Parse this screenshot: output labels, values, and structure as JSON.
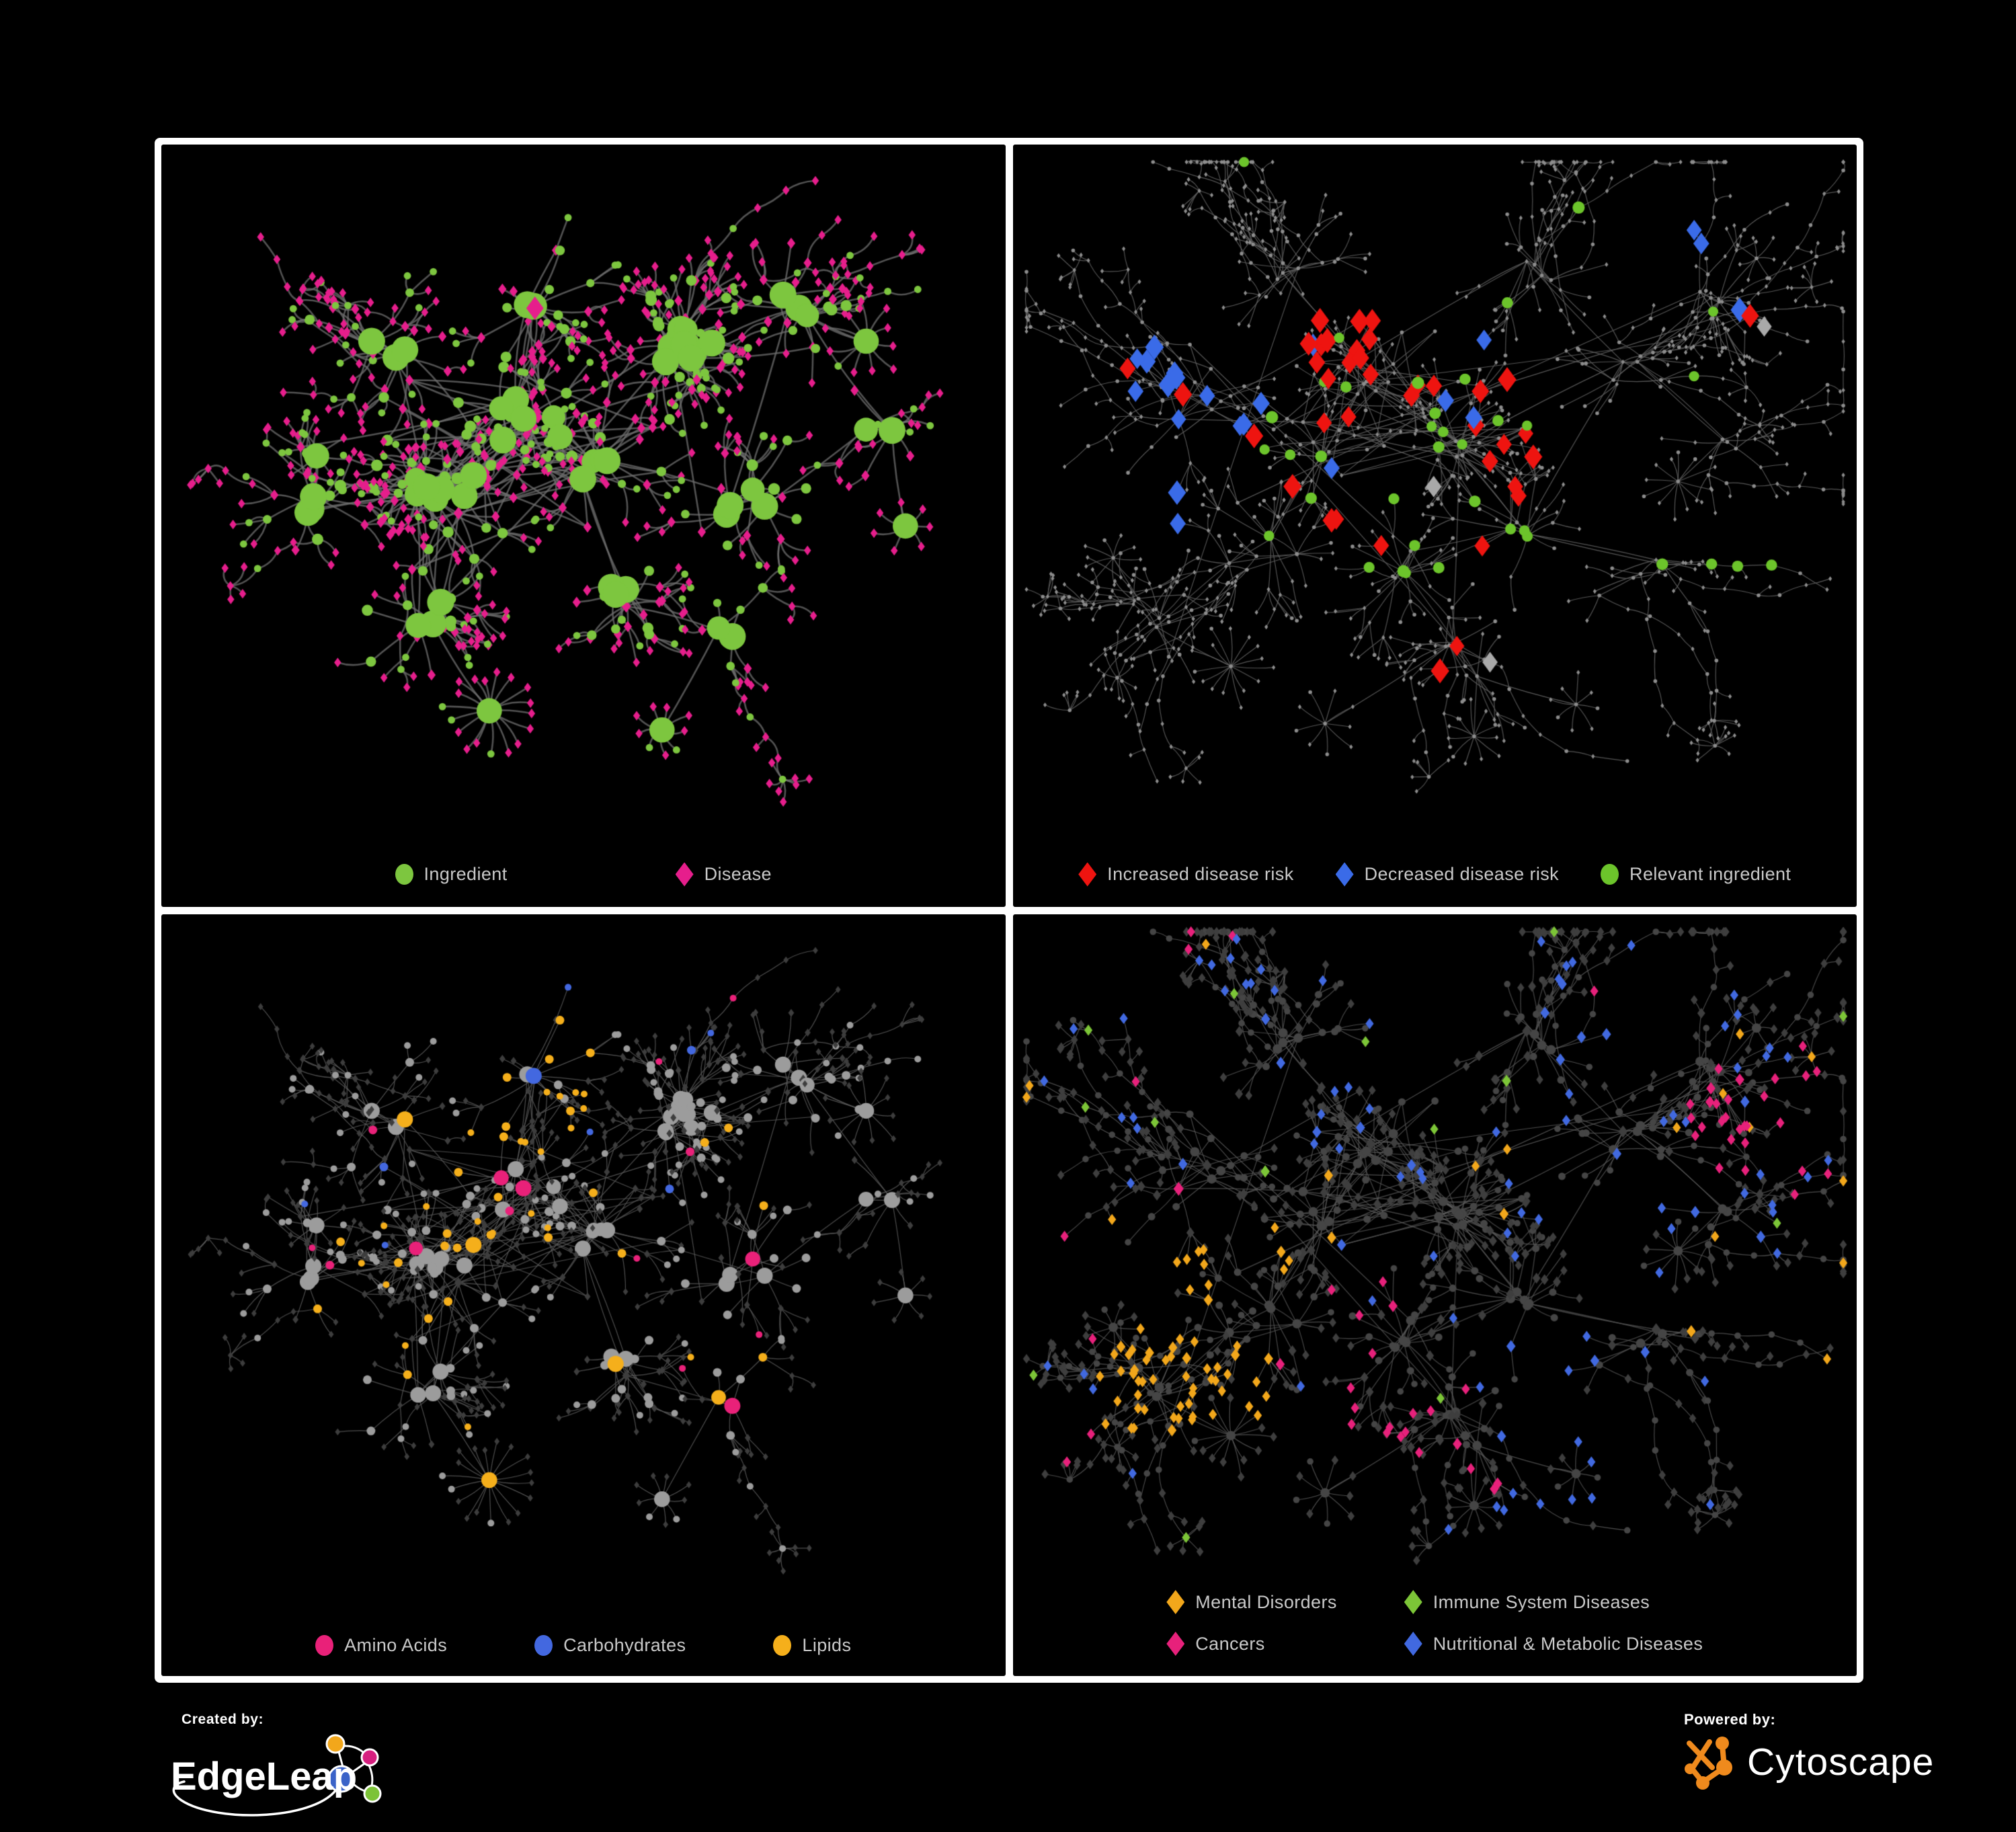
{
  "colors": {
    "background": "#000000",
    "frame": "#ffffff",
    "legend_text": "#c9c9c9",
    "edgeleap_orange": "#f2a71b",
    "edgeleap_pink": "#d61f7f",
    "edgeleap_blue": "#3b63c8",
    "edgeleap_green": "#7cc337",
    "cytoscape_orange": "#ef8a1d"
  },
  "panels": [
    {
      "id": "ingredient-disease",
      "legend": [
        {
          "label": "Ingredient",
          "shape": "circle",
          "color": "#7dc63f"
        },
        {
          "label": "Disease",
          "shape": "diamond",
          "color": "#e61e8c"
        }
      ]
    },
    {
      "id": "disease-risk",
      "legend": [
        {
          "label": "Increased disease risk",
          "shape": "diamond",
          "color": "#ee1410"
        },
        {
          "label": "Decreased disease risk",
          "shape": "diamond",
          "color": "#3a6be8"
        },
        {
          "label": "Relevant ingredient",
          "shape": "circle",
          "color": "#6cc42b"
        }
      ]
    },
    {
      "id": "nutrient-classes",
      "legend": [
        {
          "label": "Amino Acids",
          "shape": "circle",
          "color": "#e92179"
        },
        {
          "label": "Carbohydrates",
          "shape": "circle",
          "color": "#4368e0"
        },
        {
          "label": "Lipids",
          "shape": "circle",
          "color": "#f5af1b"
        }
      ]
    },
    {
      "id": "disease-classes",
      "legend": [
        {
          "label": "Mental Disorders",
          "shape": "diamond",
          "color": "#f2a71b"
        },
        {
          "label": "Immune System Diseases",
          "shape": "diamond",
          "color": "#7cc537"
        },
        {
          "label": "Cancers",
          "shape": "diamond",
          "color": "#e7217b"
        },
        {
          "label": "Nutritional & Metabolic Diseases",
          "shape": "diamond",
          "color": "#4169e0"
        }
      ]
    }
  ],
  "footer": {
    "created_by_label": "Created by:",
    "created_by_name": "EdgeLeap",
    "powered_by_label": "Powered by:",
    "powered_by_name": "Cytoscape"
  },
  "chart_data": [
    {
      "type": "network",
      "panel": "top-left",
      "node_categories": [
        {
          "label": "Ingredient",
          "shape": "circle",
          "color": "#7dc63f"
        },
        {
          "label": "Disease",
          "shape": "diamond",
          "color": "#e61e8c"
        }
      ]
    },
    {
      "type": "network",
      "panel": "top-right",
      "node_categories": [
        {
          "label": "Increased disease risk",
          "shape": "diamond",
          "color": "#ee1410"
        },
        {
          "label": "Decreased disease risk",
          "shape": "diamond",
          "color": "#3a6be8"
        },
        {
          "label": "Relevant ingredient",
          "shape": "circle",
          "color": "#6cc42b"
        }
      ]
    },
    {
      "type": "network",
      "panel": "bottom-left",
      "node_categories": [
        {
          "label": "Amino Acids",
          "shape": "circle",
          "color": "#e92179"
        },
        {
          "label": "Carbohydrates",
          "shape": "circle",
          "color": "#4368e0"
        },
        {
          "label": "Lipids",
          "shape": "circle",
          "color": "#f5af1b"
        }
      ]
    },
    {
      "type": "network",
      "panel": "bottom-right",
      "node_categories": [
        {
          "label": "Mental Disorders",
          "shape": "diamond",
          "color": "#f2a71b"
        },
        {
          "label": "Immune System Diseases",
          "shape": "diamond",
          "color": "#7cc537"
        },
        {
          "label": "Cancers",
          "shape": "diamond",
          "color": "#e7217b"
        },
        {
          "label": "Nutritional & Metabolic Diseases",
          "shape": "diamond",
          "color": "#4169e0"
        }
      ]
    }
  ]
}
